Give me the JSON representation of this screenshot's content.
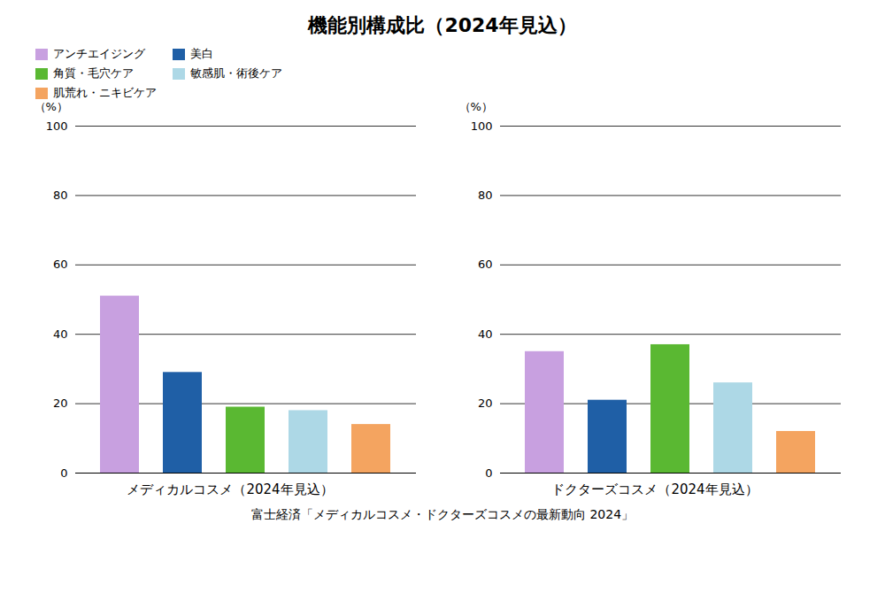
{
  "title": "機能別構成比（2024年見込）",
  "footnote": "富士経済「メディカルコスメ・ドクターズコスメの最新動向 2024」",
  "chart_data": [
    {
      "type": "bar",
      "xlabel": "メディカルコスメ（2024年見込）",
      "ylabel": "（%）",
      "categories": [
        "アンチエイジング",
        "美白",
        "角質・毛穴ケア",
        "敏感肌・術後ケア",
        "肌荒れ・ニキビケア"
      ],
      "values": [
        51,
        29,
        19,
        18,
        14
      ],
      "colors": [
        "#c8a0e0",
        "#1f5fa6",
        "#5ab832",
        "#add8e6",
        "#f4a460"
      ],
      "ylim": [
        0,
        100
      ],
      "yticks": [
        0,
        20,
        40,
        60,
        80,
        100
      ],
      "grid": true,
      "legend": "upper left",
      "tick_labels": "y"
    },
    {
      "type": "bar",
      "xlabel": "ドクターズコスメ（2024年見込）",
      "ylabel": "（%）",
      "categories": [
        "アンチエイジング",
        "美白",
        "角質・毛穴ケア",
        "敏感肌・術後ケア",
        "肌荒れ・ニキビケア"
      ],
      "values": [
        35,
        21,
        37,
        26,
        12
      ],
      "colors": [
        "#c8a0e0",
        "#1f5fa6",
        "#5ab832",
        "#add8e6",
        "#f4a460"
      ],
      "ylim": [
        0,
        100
      ],
      "yticks": [
        0,
        20,
        40,
        60,
        80,
        100
      ],
      "grid": true,
      "tick_labels": "y"
    }
  ]
}
